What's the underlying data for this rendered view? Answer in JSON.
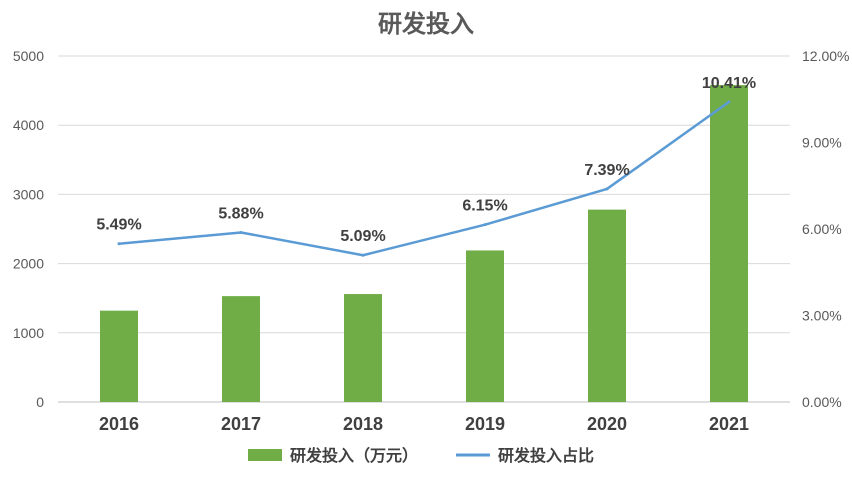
{
  "chart_data": {
    "type": "bar",
    "title": "研发投入",
    "categories": [
      "2016",
      "2017",
      "2018",
      "2019",
      "2020",
      "2021"
    ],
    "series": [
      {
        "name": "研发投入（万元）",
        "type": "bar",
        "axis": "left",
        "color": "#70AD47",
        "values": [
          1320,
          1530,
          1560,
          2190,
          2780,
          4580
        ]
      },
      {
        "name": "研发投入占比",
        "type": "line",
        "axis": "right",
        "color": "#5B9BD5",
        "values": [
          5.49,
          5.88,
          5.09,
          6.15,
          7.39,
          10.41
        ],
        "labels": [
          "5.49%",
          "5.88%",
          "5.09%",
          "6.15%",
          "7.39%",
          "10.41%"
        ]
      }
    ],
    "y_left": {
      "min": 0,
      "max": 5000,
      "ticks": [
        "0",
        "1000",
        "2000",
        "3000",
        "4000",
        "5000"
      ]
    },
    "y_right": {
      "min": 0,
      "max": 12,
      "ticks": [
        "0.00%",
        "3.00%",
        "6.00%",
        "9.00%",
        "12.00%"
      ]
    },
    "grid": true,
    "legend_position": "bottom"
  }
}
